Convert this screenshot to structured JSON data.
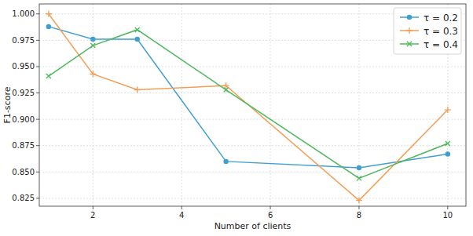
{
  "chart_data": {
    "type": "line",
    "x_label": "Number of clients",
    "y_label": "F1-score",
    "x": [
      1,
      2,
      3,
      5,
      8,
      10
    ],
    "series": [
      {
        "name": "τ = 0.2",
        "color": "#3f9fd0",
        "marker": "circle",
        "values": [
          0.988,
          0.976,
          0.976,
          0.86,
          0.854,
          0.867
        ]
      },
      {
        "name": "τ = 0.3",
        "color": "#f59d55",
        "marker": "plus",
        "values": [
          1.0,
          0.943,
          0.928,
          0.932,
          0.823,
          0.909
        ]
      },
      {
        "name": "τ = 0.4",
        "color": "#4cb85c",
        "marker": "x",
        "values": [
          0.941,
          0.97,
          0.985,
          0.928,
          0.844,
          0.877
        ]
      }
    ],
    "xlim": [
      0.79,
      10.41
    ],
    "ylim": [
      0.8175,
      1.0095
    ],
    "xticks": [
      2,
      4,
      6,
      8,
      10
    ],
    "yticks": [
      0.825,
      {
        "value": 0.85,
        "label": "0.850"
      },
      0.875,
      {
        "value": 0.9,
        "label": "0.900"
      },
      0.925,
      {
        "value": 0.95,
        "label": "0.950"
      },
      0.975,
      {
        "value": 1,
        "label": "1.000"
      }
    ],
    "grid": true,
    "legend": "upper-right"
  }
}
